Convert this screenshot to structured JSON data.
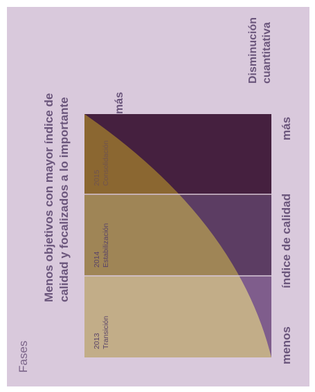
{
  "title": "Fases",
  "headline": "Menos objetivos con mayor índice de calidad y focalizados a lo importante",
  "top_right_label": "más",
  "right_label": "Disminución cuantitativa",
  "axis": {
    "low": "menos",
    "name": "índice de calidad",
    "high": "más"
  },
  "phases": [
    {
      "year": "2013",
      "name": "Transición"
    },
    {
      "year": "2014",
      "name": "Estabilización"
    },
    {
      "year": "2015",
      "name": "Consolidación"
    }
  ],
  "colors": {
    "background": "#d9c9dc",
    "phase_light": [
      "#c2ad88",
      "#9f8556",
      "#8b6731"
    ],
    "phase_dark": [
      "#7f5d8c",
      "#5c3d63",
      "#45203f"
    ],
    "text": "#6b567c"
  }
}
